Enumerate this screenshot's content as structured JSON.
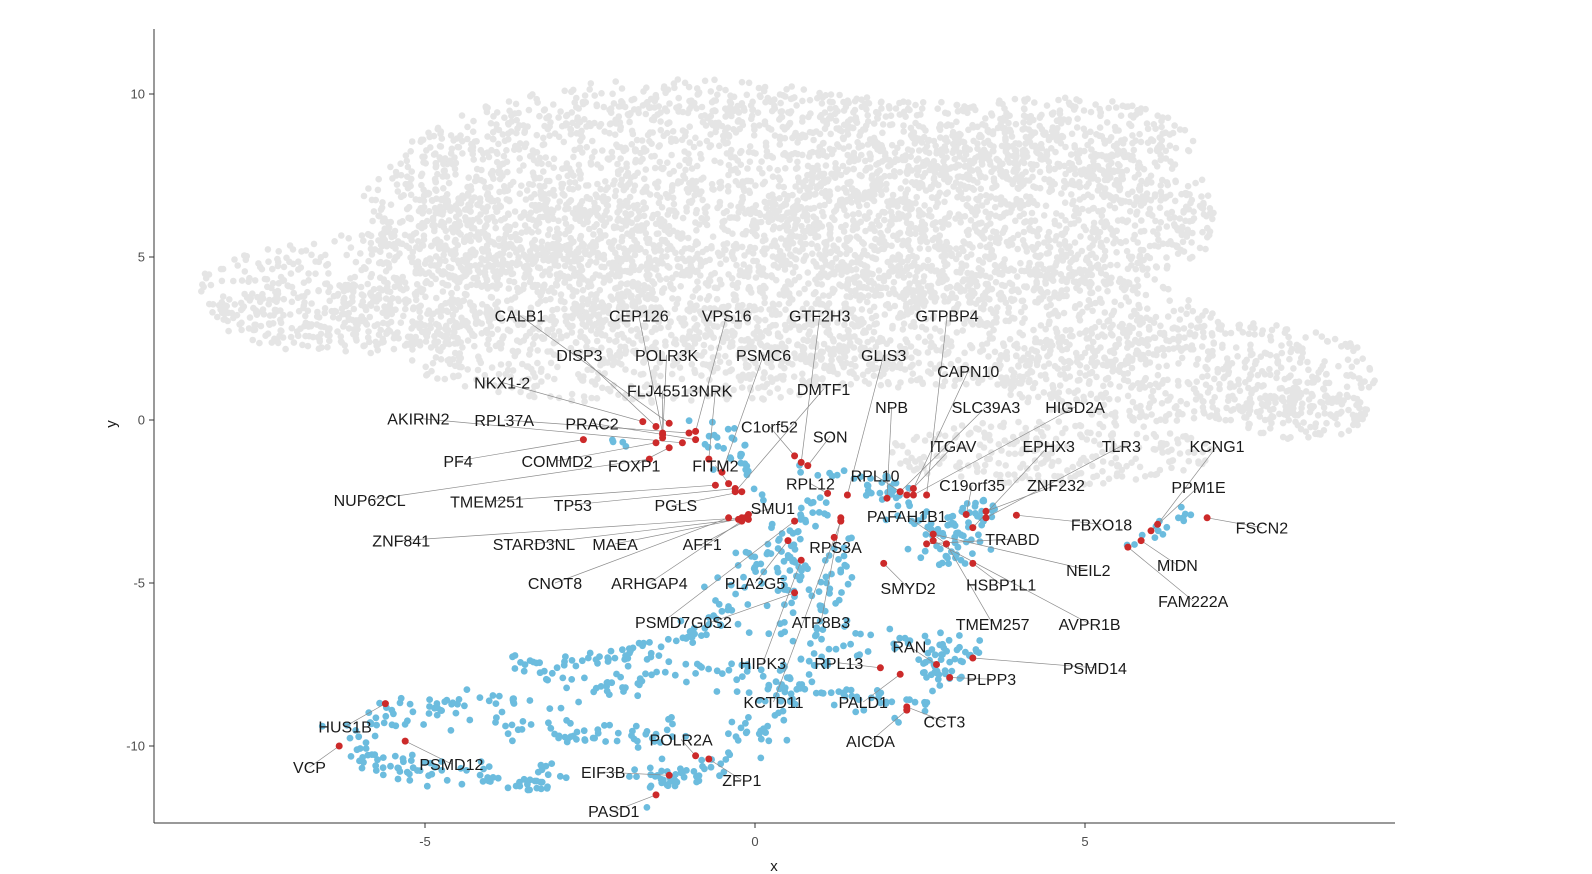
{
  "chart_data": {
    "type": "scatter",
    "title": "",
    "xlabel": "x",
    "ylabel": "y",
    "xlim": [
      -9.0,
      10.0
    ],
    "ylim": [
      -12.5,
      12.0
    ],
    "x_ticks": [
      -5,
      0,
      5
    ],
    "y_ticks": [
      10,
      5,
      0,
      -5,
      -10
    ],
    "grid": false,
    "legend": "none",
    "colors": {
      "background_cells": "#e5e5e5",
      "cluster_cells": "#6cbcde",
      "highlighted_genes": "#cc2a2a",
      "axis": "#333333"
    },
    "background_regions": [
      {
        "cx": 0.5,
        "cy": 6.5,
        "rx": 6.5,
        "ry": 3.5,
        "n": 1700
      },
      {
        "cx": -1.0,
        "cy": 7.5,
        "rx": 4.5,
        "ry": 3.0,
        "n": 900
      },
      {
        "cx": 3.5,
        "cy": 6.0,
        "rx": 3.5,
        "ry": 2.5,
        "n": 700
      },
      {
        "cx": -5.0,
        "cy": 4.0,
        "rx": 3.5,
        "ry": 1.8,
        "n": 600
      },
      {
        "cx": -6.0,
        "cy": 3.2,
        "rx": 2.2,
        "ry": 1.2,
        "n": 250
      },
      {
        "cx": 2.0,
        "cy": 3.0,
        "rx": 5.0,
        "ry": 2.0,
        "n": 900
      },
      {
        "cx": 6.5,
        "cy": 1.5,
        "rx": 3.0,
        "ry": 1.6,
        "n": 550
      },
      {
        "cx": 8.3,
        "cy": 0.2,
        "rx": 1.0,
        "ry": 0.8,
        "n": 120
      },
      {
        "cx": 4.5,
        "cy": 8.5,
        "rx": 2.2,
        "ry": 1.4,
        "n": 300
      },
      {
        "cx": -1.5,
        "cy": 2.0,
        "rx": 4.0,
        "ry": 1.5,
        "n": 500
      },
      {
        "cx": 4.5,
        "cy": -1.0,
        "rx": 2.5,
        "ry": 1.0,
        "n": 250
      },
      {
        "cx": -3.5,
        "cy": 5.5,
        "rx": 2.5,
        "ry": 1.5,
        "n": 300
      }
    ],
    "cluster_paths": [
      {
        "points": [
          [
            -6.3,
            -9.9
          ],
          [
            -5.8,
            -10.6
          ],
          [
            -5.0,
            -10.7
          ],
          [
            -4.2,
            -10.8
          ],
          [
            -3.5,
            -11.3
          ],
          [
            -3.0,
            -10.6
          ]
        ],
        "n": 80,
        "spread": 0.18
      },
      {
        "points": [
          [
            -6.2,
            -9.6
          ],
          [
            -5.6,
            -9.0
          ],
          [
            -4.8,
            -8.8
          ],
          [
            -4.0,
            -8.6
          ],
          [
            -3.2,
            -8.8
          ]
        ],
        "n": 60,
        "spread": 0.2
      },
      {
        "points": [
          [
            -4.0,
            -9.3
          ],
          [
            -3.3,
            -9.5
          ],
          [
            -2.5,
            -9.7
          ],
          [
            -1.8,
            -9.8
          ],
          [
            -1.0,
            -9.4
          ]
        ],
        "n": 55,
        "spread": 0.2
      },
      {
        "points": [
          [
            -3.6,
            -7.5
          ],
          [
            -2.8,
            -7.4
          ],
          [
            -2.0,
            -7.2
          ],
          [
            -1.2,
            -6.7
          ],
          [
            -0.6,
            -6.0
          ],
          [
            -0.2,
            -5.0
          ],
          [
            0.1,
            -4.0
          ],
          [
            0.4,
            -3.2
          ]
        ],
        "n": 110,
        "spread": 0.2
      },
      {
        "points": [
          [
            -3.0,
            -8.0
          ],
          [
            -2.3,
            -8.3
          ],
          [
            -1.6,
            -7.8
          ],
          [
            -1.0,
            -7.6
          ],
          [
            -0.3,
            -7.7
          ],
          [
            0.3,
            -8.1
          ],
          [
            1.0,
            -8.3
          ],
          [
            1.8,
            -8.6
          ],
          [
            2.3,
            -8.8
          ],
          [
            2.8,
            -8.2
          ],
          [
            2.9,
            -7.3
          ],
          [
            2.7,
            -6.8
          ],
          [
            2.0,
            -6.7
          ],
          [
            1.4,
            -6.9
          ],
          [
            0.9,
            -7.3
          ]
        ],
        "n": 150,
        "spread": 0.22
      },
      {
        "points": [
          [
            -1.8,
            -10.8
          ],
          [
            -1.4,
            -11.2
          ],
          [
            -1.0,
            -11.0
          ],
          [
            -0.6,
            -10.6
          ],
          [
            -0.3,
            -10.2
          ],
          [
            0.0,
            -9.5
          ],
          [
            0.4,
            -8.6
          ],
          [
            0.8,
            -7.6
          ],
          [
            1.0,
            -6.5
          ],
          [
            1.1,
            -5.5
          ],
          [
            1.2,
            -4.5
          ],
          [
            1.3,
            -3.5
          ]
        ],
        "n": 120,
        "spread": 0.18
      },
      {
        "points": [
          [
            0.2,
            -6.6
          ],
          [
            0.5,
            -5.8
          ],
          [
            0.6,
            -4.8
          ],
          [
            0.5,
            -4.0
          ],
          [
            0.8,
            -3.3
          ],
          [
            1.0,
            -2.5
          ]
        ],
        "n": 55,
        "spread": 0.15
      },
      {
        "points": [
          [
            -0.7,
            -0.2
          ],
          [
            -0.3,
            -0.8
          ],
          [
            -0.1,
            -1.6
          ],
          [
            0.2,
            -2.3
          ]
        ],
        "n": 30,
        "spread": 0.18
      },
      {
        "points": [
          [
            0.8,
            -1.6
          ],
          [
            1.3,
            -1.7
          ],
          [
            1.9,
            -1.9
          ],
          [
            2.2,
            -2.4
          ],
          [
            2.3,
            -2.9
          ],
          [
            2.7,
            -3.4
          ]
        ],
        "n": 45,
        "spread": 0.15
      },
      {
        "points": [
          [
            2.6,
            -3.6
          ],
          [
            3.0,
            -3.4
          ],
          [
            3.2,
            -2.9
          ],
          [
            3.5,
            -2.6
          ],
          [
            3.3,
            -3.5
          ],
          [
            3.0,
            -4.3
          ],
          [
            2.7,
            -3.9
          ]
        ],
        "n": 70,
        "spread": 0.15
      },
      {
        "points": [
          [
            3.4,
            -7.0
          ],
          [
            3.0,
            -7.2
          ],
          [
            2.6,
            -7.6
          ],
          [
            2.9,
            -8.0
          ]
        ],
        "n": 25,
        "spread": 0.12
      },
      {
        "points": [
          [
            5.7,
            -3.8
          ],
          [
            6.0,
            -3.5
          ],
          [
            6.3,
            -3.2
          ],
          [
            6.6,
            -2.8
          ]
        ],
        "n": 15,
        "spread": 0.08
      },
      {
        "points": [
          [
            -2.1,
            -0.7
          ],
          [
            -1.9,
            -0.7
          ]
        ],
        "n": 4,
        "spread": 0.05
      },
      {
        "points": [
          [
            -1.2,
            -10.6
          ],
          [
            -0.9,
            -11.0
          ],
          [
            -0.8,
            -10.2
          ],
          [
            -1.6,
            -11.4
          ]
        ],
        "n": 20,
        "spread": 0.2
      }
    ],
    "highlighted_genes": [
      {
        "gene": "CALB1",
        "x": -1.3,
        "y": -0.1,
        "lx": -3.56,
        "ly": 3.2
      },
      {
        "gene": "CEP126",
        "x": -1.4,
        "y": -0.4,
        "lx": -1.76,
        "ly": 3.2
      },
      {
        "gene": "VPS16",
        "x": -0.9,
        "y": -0.35,
        "lx": -0.43,
        "ly": 3.2
      },
      {
        "gene": "GTF2H3",
        "x": 0.7,
        "y": -1.3,
        "lx": 0.98,
        "ly": 3.2
      },
      {
        "gene": "GTPBP4",
        "x": 2.6,
        "y": -2.3,
        "lx": 2.91,
        "ly": 3.2
      },
      {
        "gene": "DISP3",
        "x": -1.5,
        "y": -0.2,
        "lx": -2.66,
        "ly": 2.0
      },
      {
        "gene": "POLR3K",
        "x": -1.4,
        "y": -0.55,
        "lx": -1.34,
        "ly": 2.0
      },
      {
        "gene": "PSMC6",
        "x": -0.5,
        "y": -1.6,
        "lx": 0.13,
        "ly": 2.0
      },
      {
        "gene": "GLIS3",
        "x": 1.4,
        "y": -2.3,
        "lx": 1.95,
        "ly": 2.0
      },
      {
        "gene": "CAPN10",
        "x": 2.4,
        "y": -2.1,
        "lx": 3.23,
        "ly": 1.5
      },
      {
        "gene": "NKX1-2",
        "x": -1.7,
        "y": -0.05,
        "lx": -3.83,
        "ly": 1.15
      },
      {
        "gene": "FLJ45513",
        "x": -1.4,
        "y": -0.45,
        "lx": -1.4,
        "ly": 0.9
      },
      {
        "gene": "NRK",
        "x": -0.7,
        "y": -1.2,
        "lx": -0.6,
        "ly": 0.9
      },
      {
        "gene": "DMTF1",
        "x": -0.3,
        "y": -2.2,
        "lx": 1.04,
        "ly": 0.95
      },
      {
        "gene": "NPB",
        "x": 2.0,
        "y": -2.4,
        "lx": 2.07,
        "ly": 0.4
      },
      {
        "gene": "SLC39A3",
        "x": 2.2,
        "y": -2.2,
        "lx": 3.5,
        "ly": 0.4
      },
      {
        "gene": "HIGD2A",
        "x": 2.4,
        "y": -2.3,
        "lx": 4.85,
        "ly": 0.4
      },
      {
        "gene": "AKIRIN2",
        "x": -1.1,
        "y": -0.7,
        "lx": -5.1,
        "ly": 0.05
      },
      {
        "gene": "RPL37A",
        "x": -1.0,
        "y": -0.4,
        "lx": -3.8,
        "ly": 0.0
      },
      {
        "gene": "PRAC2",
        "x": -0.9,
        "y": -0.6,
        "lx": -2.47,
        "ly": -0.1
      },
      {
        "gene": "C1orf52",
        "x": 0.6,
        "y": -1.1,
        "lx": 0.22,
        "ly": -0.2
      },
      {
        "gene": "SON",
        "x": 0.8,
        "y": -1.4,
        "lx": 1.14,
        "ly": -0.5
      },
      {
        "gene": "ITGAV",
        "x": 2.3,
        "y": -2.3,
        "lx": 3.0,
        "ly": -0.8
      },
      {
        "gene": "EPHX3",
        "x": 3.3,
        "y": -3.3,
        "lx": 4.45,
        "ly": -0.8
      },
      {
        "gene": "TLR3",
        "x": 3.5,
        "y": -3.0,
        "lx": 5.55,
        "ly": -0.8
      },
      {
        "gene": "KCNG1",
        "x": 6.1,
        "y": -3.2,
        "lx": 7.0,
        "ly": -0.8
      },
      {
        "gene": "PF4",
        "x": -2.6,
        "y": -0.6,
        "lx": -4.5,
        "ly": -1.25
      },
      {
        "gene": "COMMD2",
        "x": -1.5,
        "y": -0.7,
        "lx": -3.0,
        "ly": -1.25
      },
      {
        "gene": "FOXP1",
        "x": -1.3,
        "y": -0.85,
        "lx": -1.83,
        "ly": -1.4
      },
      {
        "gene": "FITM2",
        "x": -0.4,
        "y": -1.95,
        "lx": -0.6,
        "ly": -1.4
      },
      {
        "gene": "RPL12",
        "x": 1.1,
        "y": -2.25,
        "lx": 0.84,
        "ly": -1.95
      },
      {
        "gene": "RPL10",
        "x": 2.2,
        "y": -2.2,
        "lx": 1.82,
        "ly": -1.7
      },
      {
        "gene": "C19orf35",
        "x": 3.2,
        "y": -2.9,
        "lx": 3.29,
        "ly": -2.0
      },
      {
        "gene": "ZNF232",
        "x": 3.5,
        "y": -2.8,
        "lx": 4.56,
        "ly": -2.0
      },
      {
        "gene": "PPM1E",
        "x": 6.0,
        "y": -3.4,
        "lx": 6.72,
        "ly": -2.05
      },
      {
        "gene": "NUP62CL",
        "x": -1.6,
        "y": -1.2,
        "lx": -5.84,
        "ly": -2.45
      },
      {
        "gene": "TMEM251",
        "x": -0.6,
        "y": -2.0,
        "lx": -4.06,
        "ly": -2.5
      },
      {
        "gene": "TP53",
        "x": -0.3,
        "y": -2.1,
        "lx": -2.76,
        "ly": -2.6
      },
      {
        "gene": "PGLS",
        "x": -0.2,
        "y": -2.2,
        "lx": -1.2,
        "ly": -2.6
      },
      {
        "gene": "SMU1",
        "x": -0.1,
        "y": -2.9,
        "lx": 0.27,
        "ly": -2.7
      },
      {
        "gene": "PAFAH1B1",
        "x": 2.9,
        "y": -3.8,
        "lx": 2.3,
        "ly": -2.95
      },
      {
        "gene": "FBXO18",
        "x": 3.96,
        "y": -2.92,
        "lx": 5.25,
        "ly": -3.2
      },
      {
        "gene": "FSCN2",
        "x": 6.85,
        "y": -3.0,
        "lx": 7.68,
        "ly": -3.3
      },
      {
        "gene": "ZNF841",
        "x": -0.2,
        "y": -3.0,
        "lx": -5.36,
        "ly": -3.7
      },
      {
        "gene": "STARD3NL",
        "x": -0.25,
        "y": -3.05,
        "lx": -3.35,
        "ly": -3.8
      },
      {
        "gene": "MAEA",
        "x": -0.15,
        "y": -3.0,
        "lx": -2.12,
        "ly": -3.8
      },
      {
        "gene": "AFF1",
        "x": -0.1,
        "y": -3.05,
        "lx": -0.8,
        "ly": -3.8
      },
      {
        "gene": "TRABD",
        "x": 2.6,
        "y": -3.8,
        "lx": 3.9,
        "ly": -3.65
      },
      {
        "gene": "RPS3A",
        "x": 1.2,
        "y": -3.6,
        "lx": 1.22,
        "ly": -3.9
      },
      {
        "gene": "NEIL2",
        "x": 2.7,
        "y": -3.5,
        "lx": 5.05,
        "ly": -4.6
      },
      {
        "gene": "MIDN",
        "x": 5.85,
        "y": -3.7,
        "lx": 6.4,
        "ly": -4.45
      },
      {
        "gene": "CNOT8",
        "x": -0.4,
        "y": -3.0,
        "lx": -3.03,
        "ly": -5.0
      },
      {
        "gene": "ARHGAP4",
        "x": -0.2,
        "y": -3.1,
        "lx": -1.6,
        "ly": -5.0
      },
      {
        "gene": "PLA2G5",
        "x": 0.5,
        "y": -3.7,
        "lx": 0.0,
        "ly": -5.0
      },
      {
        "gene": "SMYD2",
        "x": 1.95,
        "y": -4.4,
        "lx": 2.32,
        "ly": -5.15
      },
      {
        "gene": "HSBP1L1",
        "x": 3.3,
        "y": -4.4,
        "lx": 3.73,
        "ly": -5.05
      },
      {
        "gene": "FAM222A",
        "x": 5.65,
        "y": -3.9,
        "lx": 6.64,
        "ly": -5.55
      },
      {
        "gene": "PSMD7",
        "x": 0.6,
        "y": -3.1,
        "lx": -1.4,
        "ly": -6.2
      },
      {
        "gene": "G0S2",
        "x": 0.6,
        "y": -5.3,
        "lx": -0.66,
        "ly": -6.2
      },
      {
        "gene": "ATP8B3",
        "x": 1.3,
        "y": -3.0,
        "lx": 1.0,
        "ly": -6.2
      },
      {
        "gene": "TMEM257",
        "x": 2.9,
        "y": -3.8,
        "lx": 3.6,
        "ly": -6.25
      },
      {
        "gene": "AVPR1B",
        "x": 2.7,
        "y": -3.7,
        "lx": 5.07,
        "ly": -6.25
      },
      {
        "gene": "RAN",
        "x": 2.75,
        "y": -7.5,
        "lx": 2.34,
        "ly": -6.95
      },
      {
        "gene": "HIPK3",
        "x": 0.7,
        "y": -4.3,
        "lx": 0.12,
        "ly": -7.45
      },
      {
        "gene": "RPL13",
        "x": 1.9,
        "y": -7.6,
        "lx": 1.27,
        "ly": -7.45
      },
      {
        "gene": "PSMD14",
        "x": 3.3,
        "y": -7.3,
        "lx": 5.15,
        "ly": -7.6
      },
      {
        "gene": "PLPP3",
        "x": 2.95,
        "y": -7.9,
        "lx": 3.58,
        "ly": -7.95
      },
      {
        "gene": "KCTD11",
        "x": 1.3,
        "y": -3.1,
        "lx": 0.28,
        "ly": -8.65
      },
      {
        "gene": "PALD1",
        "x": 2.2,
        "y": -7.8,
        "lx": 1.64,
        "ly": -8.65
      },
      {
        "gene": "CCT3",
        "x": 2.3,
        "y": -8.8,
        "lx": 2.87,
        "ly": -9.25
      },
      {
        "gene": "AICDA",
        "x": 2.3,
        "y": -8.9,
        "lx": 1.75,
        "ly": -9.85
      },
      {
        "gene": "HUS1B",
        "x": -5.6,
        "y": -8.7,
        "lx": -6.21,
        "ly": -9.4
      },
      {
        "gene": "POLR2A",
        "x": -0.9,
        "y": -10.3,
        "lx": -1.12,
        "ly": -9.8
      },
      {
        "gene": "VCP",
        "x": -6.3,
        "y": -10.0,
        "lx": -6.75,
        "ly": -10.65
      },
      {
        "gene": "PSMD12",
        "x": -5.3,
        "y": -9.85,
        "lx": -4.6,
        "ly": -10.55
      },
      {
        "gene": "EIF3B",
        "x": -1.3,
        "y": -10.9,
        "lx": -2.3,
        "ly": -10.8
      },
      {
        "gene": "ZFP1",
        "x": -0.7,
        "y": -10.4,
        "lx": -0.2,
        "ly": -11.05
      },
      {
        "gene": "PASD1",
        "x": -1.5,
        "y": -11.5,
        "lx": -2.14,
        "ly": -12.0
      }
    ]
  }
}
